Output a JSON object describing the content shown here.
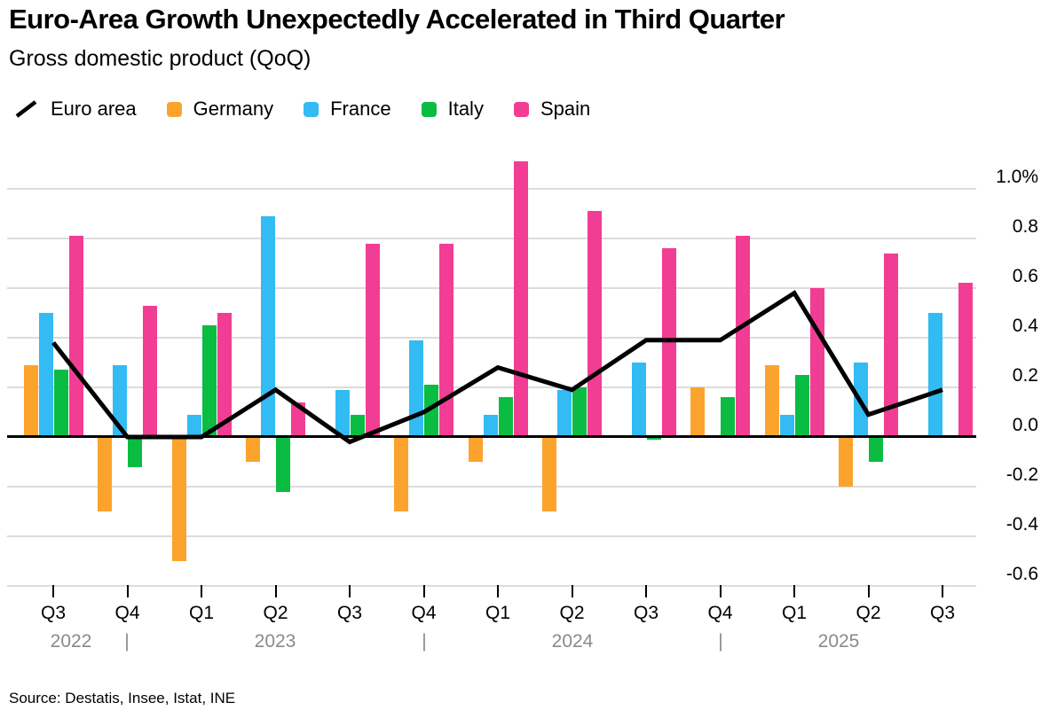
{
  "header": {
    "title": "Euro-Area Growth Unexpectedly Accelerated in Third Quarter",
    "subtitle": "Gross domestic product (QoQ)"
  },
  "footer": {
    "source": "Source: Destatis, Insee, Istat, INE"
  },
  "colors": {
    "euro_area": "#000000",
    "germany": "#FCA32D",
    "france": "#33BBF3",
    "italy": "#0BBC42",
    "spain": "#F23D94",
    "grid": "#dcdcdc",
    "axis": "#000000",
    "year_text": "#8a8a8a"
  },
  "legend": {
    "items": [
      {
        "label": "Euro area",
        "swatch": "line"
      },
      {
        "label": "Germany",
        "swatch": "square"
      },
      {
        "label": "France",
        "swatch": "square"
      },
      {
        "label": "Italy",
        "swatch": "square"
      },
      {
        "label": "Spain",
        "swatch": "square"
      }
    ]
  },
  "chart_data": {
    "type": "bar+line",
    "title": "Euro-Area Growth Unexpectedly Accelerated in Third Quarter",
    "subtitle": "Gross domestic product (QoQ)",
    "unit": "%",
    "ylim": [
      -0.6,
      1.0
    ],
    "grid": true,
    "legend_position": "top",
    "categories": [
      "Q3",
      "Q4",
      "Q1",
      "Q2",
      "Q3",
      "Q4",
      "Q1",
      "Q2",
      "Q3",
      "Q4",
      "Q1",
      "Q2",
      "Q3"
    ],
    "category_years": [
      "2022",
      "2022",
      "2023",
      "2023",
      "2023",
      "2023",
      "2024",
      "2024",
      "2024",
      "2024",
      "2025",
      "2025",
      "2025"
    ],
    "year_row": [
      "2022",
      "|",
      "2023",
      "|",
      "2024",
      "|",
      "2025"
    ],
    "yticks": [
      {
        "label": "1.0%",
        "value": 1.0
      },
      {
        "label": "0.8",
        "value": 0.8
      },
      {
        "label": "0.6",
        "value": 0.6
      },
      {
        "label": "0.4",
        "value": 0.4
      },
      {
        "label": "0.2",
        "value": 0.2
      },
      {
        "label": "0.0",
        "value": 0.0
      },
      {
        "label": "-0.2",
        "value": -0.2
      },
      {
        "label": "-0.4",
        "value": -0.4
      },
      {
        "label": "-0.6",
        "value": -0.6
      }
    ],
    "line_series": {
      "name": "Euro area",
      "color_key": "euro_area",
      "values": [
        0.38,
        0.0,
        0.0,
        0.19,
        -0.02,
        0.1,
        0.28,
        0.19,
        0.39,
        0.39,
        0.58,
        0.09,
        0.19
      ]
    },
    "bar_series": [
      {
        "name": "Germany",
        "color_key": "germany",
        "values": [
          0.29,
          -0.3,
          -0.5,
          -0.1,
          0.0,
          -0.3,
          -0.1,
          -0.3,
          0.0,
          0.2,
          0.29,
          -0.2,
          0.0
        ]
      },
      {
        "name": "France",
        "color_key": "france",
        "values": [
          0.5,
          0.29,
          0.09,
          0.89,
          0.19,
          0.39,
          0.09,
          0.19,
          0.3,
          0.0,
          0.09,
          0.3,
          0.5
        ]
      },
      {
        "name": "Italy",
        "color_key": "italy",
        "values": [
          0.27,
          -0.12,
          0.45,
          -0.22,
          0.09,
          0.21,
          0.16,
          0.2,
          -0.01,
          0.16,
          0.25,
          -0.1,
          0.0
        ]
      },
      {
        "name": "Spain",
        "color_key": "spain",
        "values": [
          0.81,
          0.53,
          0.5,
          0.14,
          0.78,
          0.78,
          1.11,
          0.91,
          0.76,
          0.81,
          0.6,
          0.74,
          0.62
        ]
      }
    ]
  }
}
